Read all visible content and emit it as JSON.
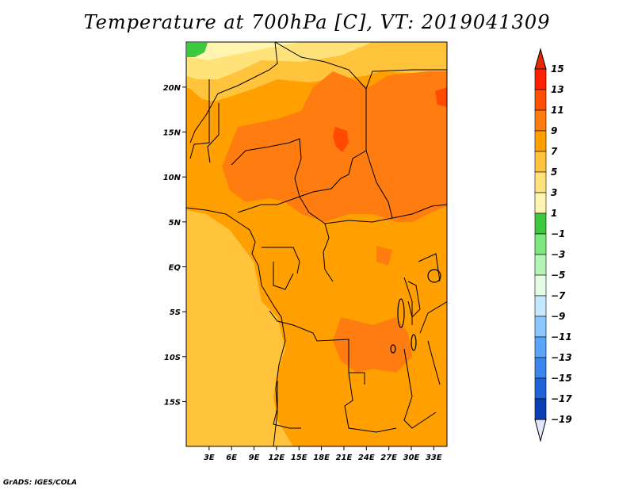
{
  "title": "Temperature at 700hPa [C], VT: 2019041309",
  "credit": "GrADS: IGES/COLA",
  "map": {
    "lon_range": [
      0,
      34
    ],
    "lat_range": [
      -20,
      24
    ],
    "x_ticks": [
      "3E",
      "6E",
      "9E",
      "12E",
      "15E",
      "18E",
      "21E",
      "24E",
      "27E",
      "30E",
      "33E"
    ],
    "x_tick_values": [
      3,
      6,
      9,
      12,
      15,
      18,
      21,
      24,
      27,
      30,
      33
    ],
    "y_ticks": [
      "20N",
      "15N",
      "10N",
      "5N",
      "EQ",
      "5S",
      "10S",
      "15S"
    ],
    "y_tick_values": [
      20,
      15,
      10,
      5,
      0,
      -5,
      -10,
      -15
    ],
    "field_colors": {
      "c3_5": "#fff5b0",
      "c5_7": "#ffe37a",
      "c7_9": "#ffc43c",
      "c9_11": "#ffa000",
      "c11_13": "#ff7c10",
      "c13_15": "#ff4a00",
      "c1_3": "#3ec83e"
    }
  },
  "colorbar": {
    "labels": [
      "15",
      "13",
      "11",
      "9",
      "7",
      "5",
      "3",
      "1",
      "−1",
      "−3",
      "−5",
      "−7",
      "−9",
      "−11",
      "−13",
      "−15",
      "−17",
      "−19"
    ],
    "colors": [
      "#ff2000",
      "#ff5000",
      "#ff7c10",
      "#ffa000",
      "#ffc43c",
      "#ffe37a",
      "#fff5b0",
      "#3ec83e",
      "#7ee87e",
      "#b4f5b4",
      "#e4fbe4",
      "#c4e8ff",
      "#8cc8ff",
      "#5aa6ff",
      "#3a86f0",
      "#1e64d8",
      "#0a40b4",
      "#061a6e"
    ],
    "top_color": "#e42800",
    "bottom_color": "#e4e4ff"
  }
}
